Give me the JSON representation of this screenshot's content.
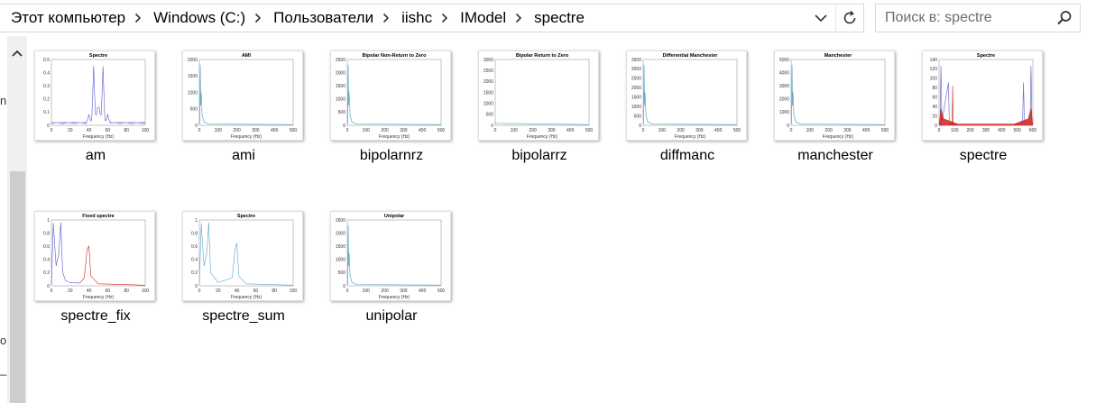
{
  "breadcrumb": [
    "Этот компьютер",
    "Windows (C:)",
    "Пользователи",
    "iishc",
    "IModel",
    "spectre"
  ],
  "search": {
    "placeholder": "Поиск в: spectre"
  },
  "nav_fragments": [
    "n",
    "o",
    "_"
  ],
  "icons": {
    "separator": "chevron-right-icon",
    "address_dropdown": "chevron-down-icon",
    "refresh": "refresh-icon",
    "search": "search-icon",
    "scroll_up": "scroll-up-arrow-icon"
  },
  "colors": {
    "blue_series": "#5b5bd6",
    "light_blue_series": "#5fa8c8",
    "red_series": "#d02020",
    "plot_border": "#888888"
  },
  "files": [
    {
      "name": "am",
      "plot": {
        "title": "Spectre",
        "xlabel": "Frequency (Hz)",
        "yticks": [
          "0",
          "0.1",
          "0.2",
          "0.3",
          "0.4",
          "0.5"
        ],
        "xticks": [
          "0",
          "20",
          "40",
          "60",
          "80",
          "100"
        ],
        "kind": "am"
      }
    },
    {
      "name": "ami",
      "plot": {
        "title": "AMI",
        "xlabel": "Frequency (Hz)",
        "yticks": [
          "0",
          "500",
          "1000",
          "1500",
          "2000"
        ],
        "xticks": [
          "0",
          "100",
          "200",
          "300",
          "400",
          "500"
        ],
        "kind": "spike"
      }
    },
    {
      "name": "bipolarnrz",
      "plot": {
        "title": "Bipolar Non-Return to Zero",
        "xlabel": "Frequency (Hz)",
        "yticks": [
          "0",
          "500",
          "1000",
          "1500",
          "2000",
          "2500"
        ],
        "xticks": [
          "0",
          "100",
          "200",
          "300",
          "400",
          "500"
        ],
        "kind": "spike"
      }
    },
    {
      "name": "bipolarrz",
      "plot": {
        "title": "Bipolar Return to Zero",
        "xlabel": "Frequency (Hz)",
        "yticks": [
          "0",
          "500",
          "1000",
          "1500",
          "2000",
          "2500",
          "3000"
        ],
        "xticks": [
          "0",
          "100",
          "200",
          "300",
          "400",
          "500"
        ],
        "kind": "flat"
      }
    },
    {
      "name": "diffmanc",
      "plot": {
        "title": "Differential Manchester",
        "xlabel": "Frequency (Hz)",
        "yticks": [
          "0",
          "500",
          "1000",
          "1500",
          "2000",
          "2500",
          "3000",
          "3500"
        ],
        "xticks": [
          "0",
          "100",
          "200",
          "300",
          "400",
          "500"
        ],
        "kind": "spike"
      }
    },
    {
      "name": "manchester",
      "plot": {
        "title": "Manchester",
        "xlabel": "Frequency (Hz)",
        "yticks": [
          "0",
          "1000",
          "2000",
          "3000",
          "4000",
          "5000"
        ],
        "xticks": [
          "0",
          "100",
          "200",
          "300",
          "400",
          "500"
        ],
        "kind": "spike"
      }
    },
    {
      "name": "spectre",
      "plot": {
        "title": "Spectre",
        "xlabel": "",
        "yticks": [
          "0",
          "20",
          "40",
          "60",
          "80",
          "100",
          "120",
          "140"
        ],
        "xticks": [
          "0",
          "100",
          "200",
          "300",
          "400",
          "500",
          "600"
        ],
        "kind": "spectre"
      }
    },
    {
      "name": "spectre_fix",
      "plot": {
        "title": "Fixed spectre",
        "xlabel": "Frequency (Hz)",
        "yticks": [
          "0",
          "0.2",
          "0.4",
          "0.6",
          "0.8",
          "1"
        ],
        "xticks": [
          "0",
          "20",
          "40",
          "60",
          "80",
          "100"
        ],
        "kind": "fix"
      }
    },
    {
      "name": "spectre_sum",
      "plot": {
        "title": "Spectre",
        "xlabel": "Frequency (Hz)",
        "yticks": [
          "0",
          "0.2",
          "0.4",
          "0.6",
          "0.8",
          "1"
        ],
        "xticks": [
          "0",
          "20",
          "40",
          "60",
          "80",
          "100"
        ],
        "kind": "sum"
      }
    },
    {
      "name": "unipolar",
      "plot": {
        "title": "Unipolar",
        "xlabel": "Frequency (Hz)",
        "yticks": [
          "0",
          "500",
          "1000",
          "1500",
          "2000",
          "2500"
        ],
        "xticks": [
          "0",
          "100",
          "200",
          "300",
          "400",
          "500"
        ],
        "kind": "spike"
      }
    }
  ]
}
